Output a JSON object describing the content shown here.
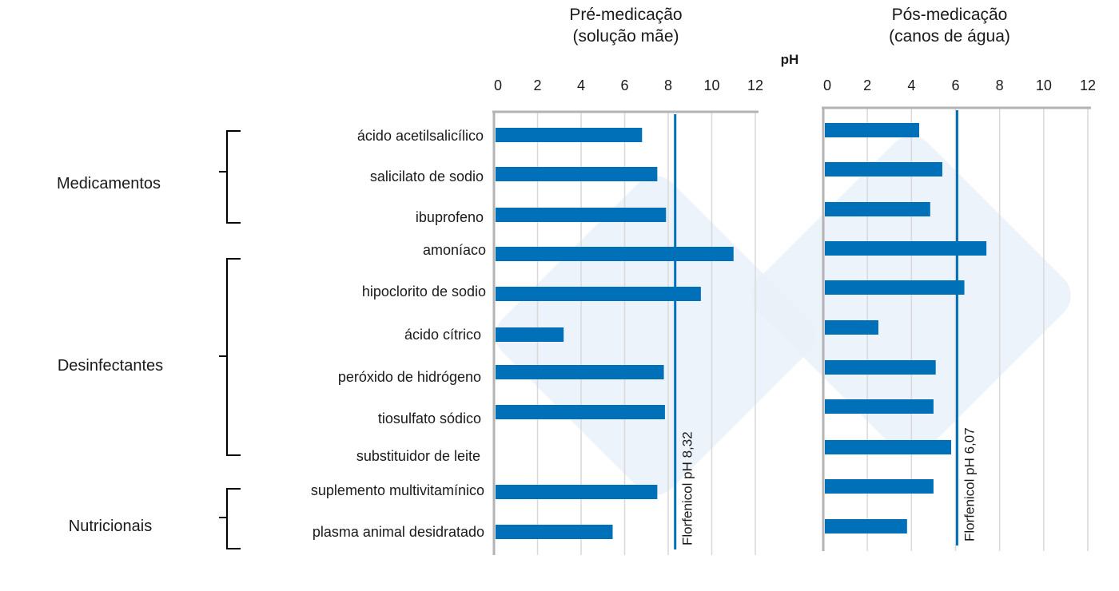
{
  "chart_data": [
    {
      "type": "bar",
      "orientation": "horizontal",
      "title": "Pré-medicação\n(solução mãe)",
      "title_lines": [
        "Pré-medicação",
        "(solução mãe)"
      ],
      "xlabel": "pH",
      "xlim": [
        0,
        12
      ],
      "xticks": [
        "0",
        "2",
        "4",
        "6",
        "8",
        "10",
        "12"
      ],
      "grid": true,
      "categories": [
        "ácido acetilsalicílico",
        "salicilato de sodio",
        "ibuprofeno",
        "amoníaco",
        "hipoclorito de sodio",
        "ácido cítrico",
        "peróxido de hidrógeno",
        "tiosulfato sódico",
        "substituidor de leite",
        "suplemento multivitamínico",
        "plasma animal desidratado"
      ],
      "values": [
        6.8,
        7.5,
        7.9,
        11.0,
        9.5,
        3.2,
        7.8,
        7.85,
        null,
        7.5,
        5.45
      ],
      "reference_line": {
        "value": 8.32,
        "label": "Florfenicol pH 8,32"
      },
      "color": "#0070B8"
    },
    {
      "type": "bar",
      "orientation": "horizontal",
      "title": "Pós-medicação\n(canos de água)",
      "title_lines": [
        "Pós-medicação",
        "(canos de água)"
      ],
      "xlim": [
        0,
        12
      ],
      "xticks": [
        "0",
        "2",
        "4",
        "6",
        "8",
        "10",
        "12"
      ],
      "grid": true,
      "categories": [
        "ácido acetilsalicílico",
        "salicilato de sodio",
        "ibuprofeno",
        "amoníaco",
        "hipoclorito de sodio",
        "ácido cítrico",
        "peróxido de hidrógeno",
        "tiosulfato sódico",
        "substituidor de leite",
        "suplemento multivitamínico",
        "plasma animal desidratado"
      ],
      "values": [
        4.35,
        5.4,
        4.85,
        7.4,
        6.4,
        2.5,
        5.1,
        5.0,
        5.8,
        5.0,
        3.8
      ],
      "reference_line": {
        "value": 6.07,
        "label": "Florfenicol pH 6,07"
      },
      "color": "#0070B8"
    }
  ],
  "groups": [
    {
      "label": "Medicamentos",
      "from": 0,
      "to": 2
    },
    {
      "label": "Desinfectantes",
      "from": 3,
      "to": 8
    },
    {
      "label": "Nutricionais",
      "from": 9,
      "to": 10
    }
  ],
  "colors": {
    "bar": "#0070B8",
    "axis": "#B3B3B3",
    "grid": "#D9D9D9",
    "watermark": "#E8F0F9"
  }
}
